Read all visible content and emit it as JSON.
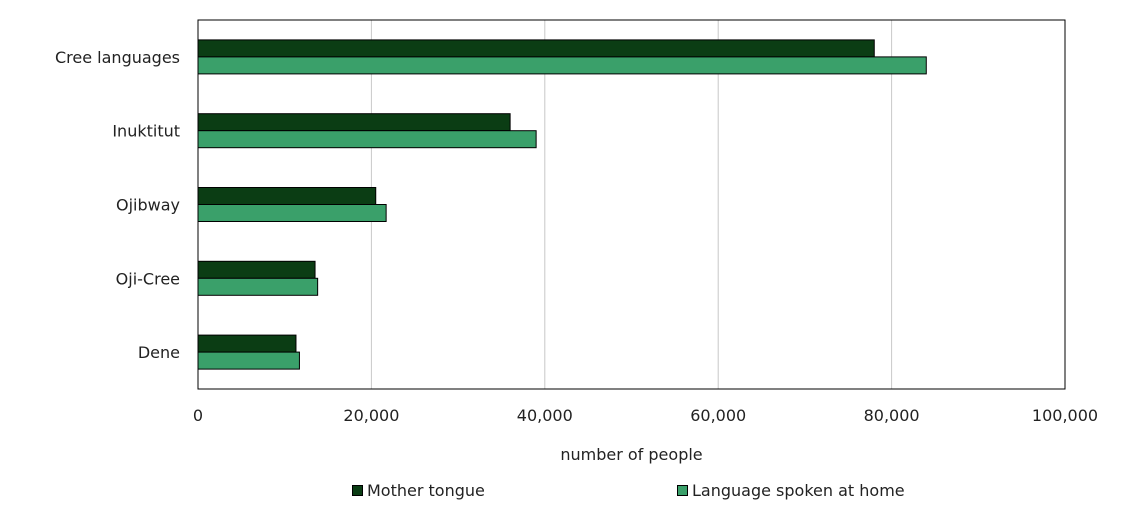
{
  "chart_data": {
    "type": "bar",
    "orientation": "horizontal",
    "categories": [
      "Cree languages",
      "Inuktitut",
      "Ojibway",
      "Oji-Cree",
      "Dene"
    ],
    "series": [
      {
        "name": "Mother tongue",
        "color": "#0b3d14",
        "values": [
          78000,
          36000,
          20500,
          13500,
          11300
        ]
      },
      {
        "name": "Language spoken at home",
        "color": "#3aa06a",
        "values": [
          84000,
          39000,
          21700,
          13800,
          11700
        ]
      }
    ],
    "xlabel": "number of people",
    "xlim": [
      0,
      100000
    ],
    "xticks": [
      0,
      20000,
      40000,
      60000,
      80000,
      100000
    ],
    "xtick_labels": [
      "0",
      "20,000",
      "40,000",
      "60,000",
      "80,000",
      "100,000"
    ],
    "grid": "vertical",
    "legend": "bottom"
  }
}
